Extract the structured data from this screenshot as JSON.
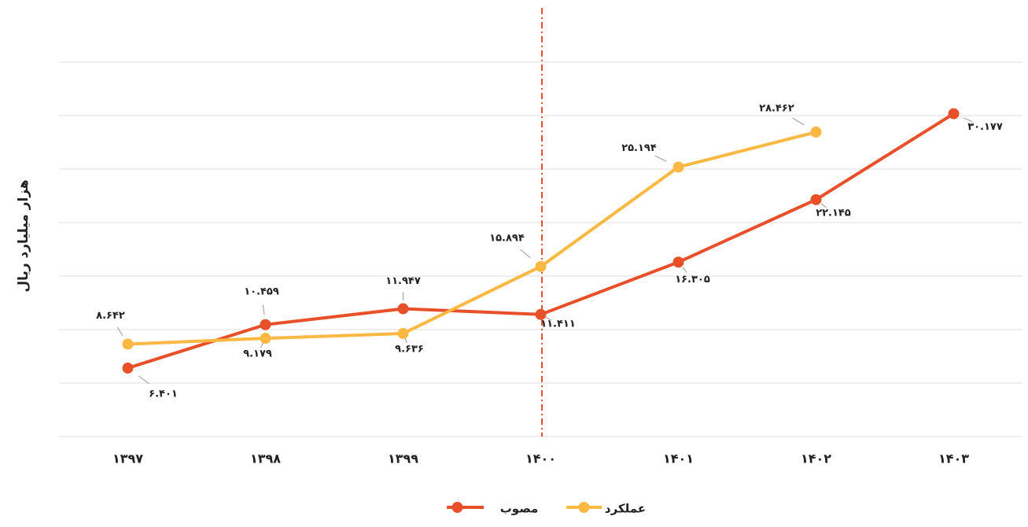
{
  "chart_data": {
    "type": "line",
    "y_label": "هزار میلیارد ریال",
    "categories": [
      "۱۳۹۷",
      "۱۳۹۸",
      "۱۳۹۹",
      "۱۴۰۰",
      "۱۴۰۱",
      "۱۴۰۲",
      "۱۴۰۳"
    ],
    "series": [
      {
        "name": "مصوب",
        "color": "#e8502a",
        "values": [
          6.401,
          10.459,
          11.947,
          11.411,
          16.305,
          22.145,
          30.177
        ],
        "value_labels": [
          "۶.۴۰۱",
          "۱۰.۴۵۹",
          "۱۱.۹۴۷",
          "۱۱.۴۱۱",
          "۱۶.۳۰۵",
          "۲۲.۱۴۵",
          "۳۰.۱۷۷"
        ]
      },
      {
        "name": "عملکرد",
        "color": "#fbb843",
        "values": [
          8.642,
          9.179,
          9.636,
          15.894,
          25.194,
          28.462,
          null
        ],
        "value_labels": [
          "۸.۶۴۲",
          "۹.۱۷۹",
          "۹.۶۳۶",
          "۱۵.۸۹۴",
          "۲۵.۱۹۴",
          "۲۸.۴۶۲",
          null
        ]
      }
    ],
    "ylim": [
      0,
      35
    ],
    "yticks": [
      0,
      5,
      10,
      15,
      20,
      25,
      30,
      35
    ],
    "grid": true
  }
}
